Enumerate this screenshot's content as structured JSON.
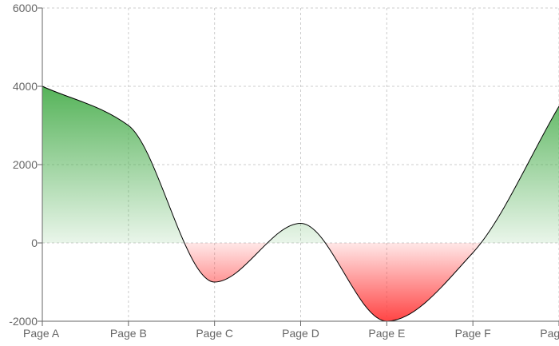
{
  "chart_data": {
    "type": "area",
    "title": "",
    "xlabel": "",
    "ylabel": "",
    "categories": [
      "Page A",
      "Page B",
      "Page C",
      "Page D",
      "Page E",
      "Page F",
      "Page G"
    ],
    "series": [
      {
        "values": [
          4000,
          3000,
          -1000,
          500,
          -2000,
          -250,
          3490
        ]
      }
    ],
    "ylim": [
      -2000,
      6000
    ],
    "yticks": [
      "-2000",
      "0",
      "2000",
      "4000",
      "6000"
    ],
    "grid": true,
    "legend": "none",
    "colors": {
      "positive": "#4caf50",
      "negative": "#ff3b3b",
      "line": "#000000",
      "grid": "#cccccc",
      "axis": "#666666"
    }
  }
}
